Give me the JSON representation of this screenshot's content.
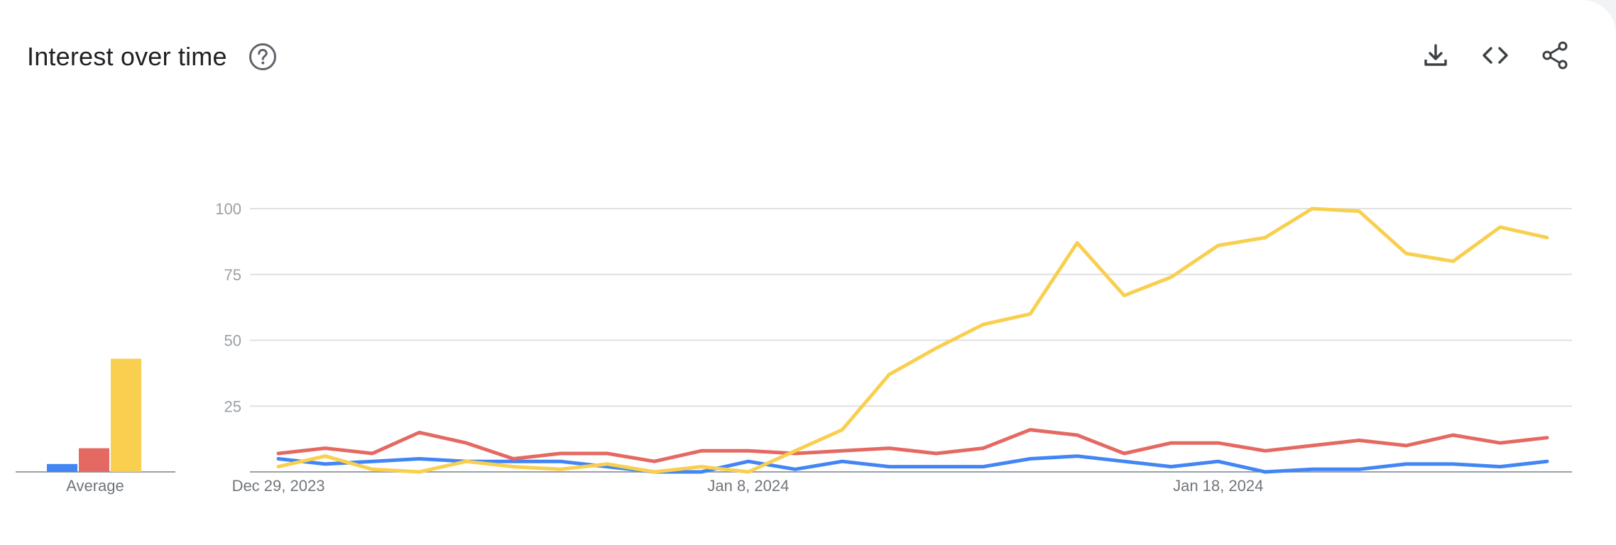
{
  "header": {
    "title": "Interest over time"
  },
  "icons": {
    "help": "help-circle-icon",
    "download": "download-icon",
    "embed": "embed-code-icon",
    "share": "share-icon"
  },
  "chart_data": [
    {
      "type": "bar",
      "xlabel": "Average",
      "series": [
        {
          "color": "#4285f4",
          "value": 3
        },
        {
          "color": "#e46962",
          "value": 9
        },
        {
          "color": "#f9cf4f",
          "value": 43
        }
      ]
    },
    {
      "type": "line",
      "ylim": [
        0,
        100
      ],
      "yticks": [
        25,
        50,
        75,
        100
      ],
      "grid": true,
      "x": [
        "Dec 29, 2023",
        "Dec 30, 2023",
        "Dec 31, 2023",
        "Jan 1, 2024",
        "Jan 2, 2024",
        "Jan 3, 2024",
        "Jan 4, 2024",
        "Jan 5, 2024",
        "Jan 6, 2024",
        "Jan 7, 2024",
        "Jan 8, 2024",
        "Jan 9, 2024",
        "Jan 10, 2024",
        "Jan 11, 2024",
        "Jan 12, 2024",
        "Jan 13, 2024",
        "Jan 14, 2024",
        "Jan 15, 2024",
        "Jan 16, 2024",
        "Jan 17, 2024",
        "Jan 18, 2024",
        "Jan 19, 2024",
        "Jan 20, 2024",
        "Jan 21, 2024",
        "Jan 22, 2024",
        "Jan 23, 2024",
        "Jan 24, 2024",
        "Jan 25, 2024"
      ],
      "xtick_labels": [
        "Dec 29, 2023",
        "Jan 8, 2024",
        "Jan 18, 2024"
      ],
      "series": [
        {
          "color": "#4285f4",
          "values": [
            5,
            3,
            4,
            5,
            4,
            4,
            4,
            2,
            0,
            0,
            4,
            1,
            4,
            2,
            2,
            2,
            5,
            6,
            4,
            2,
            4,
            0,
            1,
            1,
            3,
            3,
            2,
            4
          ]
        },
        {
          "color": "#e46962",
          "values": [
            7,
            9,
            7,
            15,
            11,
            5,
            7,
            7,
            4,
            8,
            8,
            7,
            8,
            9,
            7,
            9,
            16,
            14,
            7,
            11,
            11,
            8,
            10,
            12,
            10,
            14,
            11,
            13
          ]
        },
        {
          "color": "#f9cf4f",
          "values": [
            2,
            6,
            1,
            0,
            4,
            2,
            1,
            3,
            0,
            2,
            0,
            8,
            16,
            37,
            47,
            56,
            60,
            87,
            67,
            74,
            86,
            89,
            100,
            99,
            83,
            80,
            93,
            89
          ]
        }
      ]
    }
  ]
}
